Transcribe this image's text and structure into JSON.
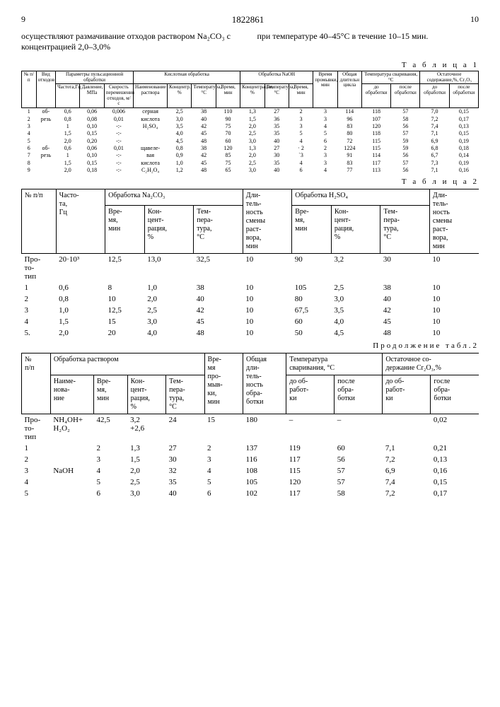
{
  "header": {
    "left_page": "9",
    "patent_no": "1822861",
    "right_page": "10"
  },
  "para": {
    "left": "осуществляют размачивание отходов раствором Na₂CO₃ с концентрацией 2,0–3,0%",
    "right": "при температуре 40–45°С в течение 10–15 мин."
  },
  "t1": {
    "caption": "Т а б л и ц а 1",
    "cols": {
      "c1": "№ п/п",
      "c2": "Вид отходов",
      "g_pulse": "Параметры пульсационной обработки",
      "c3": "Частота,Гц",
      "c4": "Давление, МПа",
      "c5": "Скорость перемешения отходов, м/с",
      "g_acid": "Кислотная обработка",
      "c6": "Наименование раствора",
      "c7": "Концентр., %",
      "c8": "Температура, °C",
      "c9": "Время, мин",
      "g_naoh": "Обработка NaOH",
      "c10": "Концентрация, %",
      "c11": "Температура, °C",
      "c12": "Время, мин",
      "c13": "Время промывки, мин",
      "c14": "Общая длительн цикла",
      "g_svar": "Температура сваривания, °C",
      "c15": "до обработки",
      "c16": "после обработки",
      "g_ost": "Остаточное содержание,%, Cr₂O₃",
      "c17": "до обработки",
      "c18": "после обработки"
    },
    "rows": [
      {
        "n": "1",
        "vid": "об-",
        "f": "0,6",
        "p": "0,06",
        "v": "0,006",
        "reag": "серная",
        "kc": "2,5",
        "tc": "38",
        "tcmin": "110",
        "knaoh": "1,3",
        "tna": "27",
        "tnamin": "2",
        "tprom": "3",
        "tcikl": "114",
        "sv1": "118",
        "sv2": "57",
        "ost1": "7,0",
        "ost2": "0,15"
      },
      {
        "n": "2",
        "vid": "резь",
        "f": "0,8",
        "p": "0,08",
        "v": "0,01",
        "reag": "кислота",
        "kc": "3,0",
        "tc": "40",
        "tcmin": "90",
        "knaoh": "1,5",
        "tna": "36",
        "tnamin": "3",
        "tprom": "3",
        "tcikl": "96",
        "sv1": "107",
        "sv2": "58",
        "ost1": "7,2",
        "ost2": "0,17"
      },
      {
        "n": "3",
        "vid": "",
        "f": "1",
        "p": "0,10",
        "v": "-:-",
        "reag": "H₂SO₄",
        "kc": "3,5",
        "tc": "42",
        "tcmin": "75",
        "knaoh": "2,0",
        "tna": "35",
        "tnamin": "3",
        "tprom": "4",
        "tcikl": "83",
        "sv1": "120",
        "sv2": "56",
        "ost1": "7,4",
        "ost2": "0,13"
      },
      {
        "n": "4",
        "vid": "",
        "f": "1,5",
        "p": "0,15",
        "v": "-:-",
        "reag": "",
        "kc": "4,0",
        "tc": "45",
        "tcmin": "70",
        "knaoh": "2,5",
        "tna": "35",
        "tnamin": "5",
        "tprom": "5",
        "tcikl": "80",
        "sv1": "118",
        "sv2": "57",
        "ost1": "7,1",
        "ost2": "0,15"
      },
      {
        "n": "5",
        "vid": "",
        "f": "2,0",
        "p": "0,20",
        "v": "-:-",
        "reag": "",
        "kc": "4,5",
        "tc": "48",
        "tcmin": "60",
        "knaoh": "3,0",
        "tna": "40",
        "tnamin": "4",
        "tprom": "6",
        "tcikl": "72",
        "sv1": "115",
        "sv2": "59",
        "ost1": "6,9",
        "ost2": "0,19"
      },
      {
        "n": "6",
        "vid": "об-",
        "f": "0,6",
        "p": "0,06",
        "v": "0,01",
        "reag": "щавеле-",
        "kc": "0,8",
        "tc": "38",
        "tcmin": "120",
        "knaoh": "1,3",
        "tna": "27",
        "tnamin": "· 2",
        "tprom": "2",
        "tcikl": "1224",
        "sv1": "115",
        "sv2": "59",
        "ost1": "6,8",
        "ost2": "0,18"
      },
      {
        "n": "7",
        "vid": "резь",
        "f": "1",
        "p": "0,10",
        "v": "-:-",
        "reag": "вая",
        "kc": "0,9",
        "tc": "42",
        "tcmin": "85",
        "knaoh": "2,0",
        "tna": "30",
        "tnamin": "`3",
        "tprom": "3",
        "tcikl": "91",
        "sv1": "114",
        "sv2": "56",
        "ost1": "6,7",
        "ost2": "0,14"
      },
      {
        "n": "8",
        "vid": "",
        "f": "1,5",
        "p": "0,15",
        "v": "-:-",
        "reag": "кислота",
        "kc": "1,0",
        "tc": "45",
        "tcmin": "75",
        "knaoh": "2,5",
        "tna": "35",
        "tnamin": "4",
        "tprom": "3",
        "tcikl": "83",
        "sv1": "117",
        "sv2": "57",
        "ost1": "7,3",
        "ost2": "0,19"
      },
      {
        "n": "9",
        "vid": "",
        "f": "2,0",
        "p": "0,18",
        "v": "-:-",
        "reag": "С₂H₂O₄",
        "kc": "1,2",
        "tc": "48",
        "tcmin": "65",
        "knaoh": "3,0",
        "tna": "40",
        "tnamin": "6",
        "tprom": "4",
        "tcikl": "77",
        "sv1": "113",
        "sv2": "56",
        "ost1": "7,1",
        "ost2": "0,16"
      }
    ]
  },
  "t2": {
    "caption": "Т а б л и ц а 2",
    "cols": {
      "c1": "№ п/п",
      "c2": "Часто-\nта,\nГц",
      "g_na": "Обработка Na₂CO₃",
      "c3": "Вре-\nмя,\nмин",
      "c4": "Кон-\nцент-\nрация,\n%",
      "c5": "Тем-\nпера-\nтура,\n°C",
      "c6": "Дли-\nтель-\nность\nсмены\nраст-\nвора,\nмин",
      "g_h2so4": "Обработка H₂SO₄",
      "c7": "Вре-\nмя,\nмин",
      "c8": "Кон-\nцент-\nрация,\n%",
      "c9": "Тем-\nпера-\nтура,\n°C",
      "c10": "Дли-\nтель-\nность\nсмены\nраст-\nвора,\nмин"
    },
    "rows": [
      {
        "n": "Про-\nто-\nтип",
        "f": "20·10³",
        "t_na": "12,5",
        "c_na": "13,0",
        "temp_na": "32,5",
        "d1": "10",
        "t_h": "90",
        "c_h": "3,2",
        "temp_h": "30",
        "d2": "10"
      },
      {
        "n": "1",
        "f": "0,6",
        "t_na": "8",
        "c_na": "1,0",
        "temp_na": "38",
        "d1": "10",
        "t_h": "105",
        "c_h": "2,5",
        "temp_h": "38",
        "d2": "10"
      },
      {
        "n": "2",
        "f": "0,8",
        "t_na": "10",
        "c_na": "2,0",
        "temp_na": "40",
        "d1": "10",
        "t_h": "80",
        "c_h": "3,0",
        "temp_h": "40",
        "d2": "10"
      },
      {
        "n": "3",
        "f": "1,0",
        "t_na": "12,5",
        "c_na": "2,5",
        "temp_na": "42",
        "d1": "10",
        "t_h": "67,5",
        "c_h": "3,5",
        "temp_h": "42",
        "d2": "10"
      },
      {
        "n": "4",
        "f": "1,5",
        "t_na": "15",
        "c_na": "3,0",
        "temp_na": "45",
        "d1": "10",
        "t_h": "60",
        "c_h": "4,0",
        "temp_h": "45",
        "d2": "10"
      },
      {
        "n": "5.",
        "f": "2,0",
        "t_na": "20",
        "c_na": "4,0",
        "temp_na": "48",
        "d1": "10",
        "t_h": "50",
        "c_h": "4,5",
        "temp_h": "48",
        "d2": "10"
      }
    ]
  },
  "t3": {
    "caption": "Продолжение табл.2",
    "cols": {
      "c1": "№\nп/п",
      "g_rast": "Обработка раствором",
      "c2": "Наиме-\nнова-\nние",
      "c3": "Вре-\nмя,\nмин",
      "c4": "Кон-\nцент-\nрация,\n%",
      "c5": "Тем-\nпера-\nтура,\n°C",
      "c6": "Вре-\nмя\nпро-\nмыв-\nки,\nмин",
      "c7": "Общая\nдли-\nтель-\nность\nобра-\nботки",
      "g_svar": "Температура\nсваривания, °C",
      "c8": "до об-\nработ-\nки",
      "c9": "после\nобра-\nботки",
      "g_ost": "Остаточное со-\nдержание Cr₂O₃,%",
      "c10": "до об-\nработ-\nки",
      "c11": "госле\nобра-\nботки"
    },
    "rows": [
      {
        "n": "Про-\nто-\nтип",
        "reag": "NH₄OH+\nH₂O₂",
        "t": "42,5",
        "c": "3,2\n+2,6",
        "temp": "24",
        "prom": "15",
        "tot": "180",
        "sv1": "–",
        "sv2": "–",
        "ost1": "",
        "ost2": "0,02"
      },
      {
        "n": "1",
        "reag": "",
        "t": "2",
        "c": "1,3",
        "temp": "27",
        "prom": "2",
        "tot": "137",
        "sv1": "119",
        "sv2": "60",
        "ost1": "7,1",
        "ost2": "0,21"
      },
      {
        "n": "2",
        "reag": "",
        "t": "3",
        "c": "1,5",
        "temp": "30",
        "prom": "3",
        "tot": "116",
        "sv1": "117",
        "sv2": "56",
        "ost1": "7,2",
        "ost2": "0,13"
      },
      {
        "n": "3",
        "reag": "NaOH",
        "t": "4",
        "c": "2,0",
        "temp": "32",
        "prom": "4",
        "tot": "108",
        "sv1": "115",
        "sv2": "57",
        "ost1": "6,9",
        "ost2": "0,16"
      },
      {
        "n": "4",
        "reag": "",
        "t": "5",
        "c": "2,5",
        "temp": "35",
        "prom": "5",
        "tot": "105",
        "sv1": "120",
        "sv2": "57",
        "ost1": "7,4",
        "ost2": "0,15"
      },
      {
        "n": "5",
        "reag": "",
        "t": "6",
        "c": "3,0",
        "temp": "40",
        "prom": "6",
        "tot": "102",
        "sv1": "117",
        "sv2": "58",
        "ost1": "7,2",
        "ost2": "0,17"
      }
    ]
  }
}
